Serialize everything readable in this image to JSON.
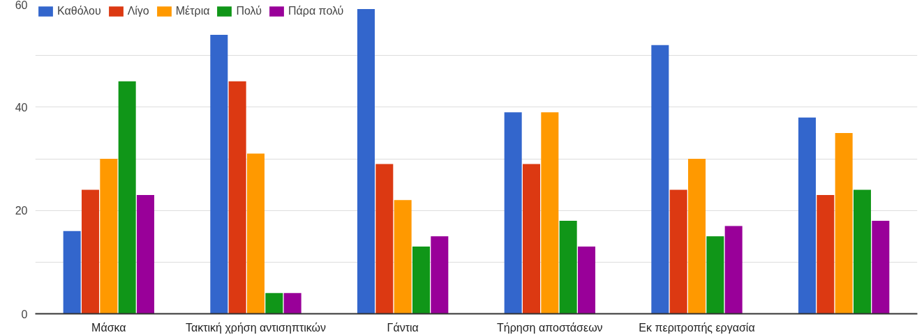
{
  "chart_data": {
    "type": "bar",
    "categories": [
      "Μάσκα",
      "Τακτική χρήση αντισηπτικών",
      "Γάντια",
      "Τήρηση αποστάσεων",
      "Εκ περιτροπής εργασία",
      null
    ],
    "series": [
      {
        "name": "Καθόλου",
        "color": "#3366cc",
        "values": [
          16,
          54,
          59,
          39,
          52,
          38
        ]
      },
      {
        "name": "Λίγο",
        "color": "#dc3912",
        "values": [
          24,
          45,
          29,
          29,
          24,
          23
        ]
      },
      {
        "name": "Μέτρια",
        "color": "#ff9900",
        "values": [
          30,
          31,
          22,
          39,
          30,
          35
        ]
      },
      {
        "name": "Πολύ",
        "color": "#109618",
        "values": [
          45,
          4,
          13,
          18,
          15,
          24
        ]
      },
      {
        "name": "Πάρα πολύ",
        "color": "#990099",
        "values": [
          23,
          4,
          15,
          13,
          17,
          18
        ]
      }
    ],
    "ylim": [
      0,
      60
    ],
    "yticks": [
      0,
      {
        "value": 10,
        "label": null
      },
      20,
      {
        "value": 30,
        "label": null
      },
      40,
      {
        "value": 50,
        "label": null
      },
      60
    ],
    "grid": "y",
    "legend": "top left"
  }
}
